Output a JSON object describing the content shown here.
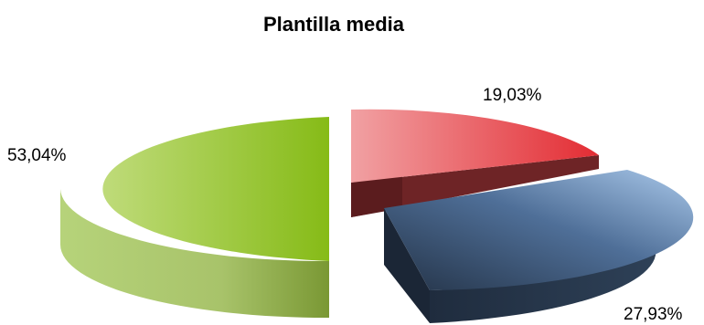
{
  "chart_data": {
    "type": "pie",
    "title": "Plantilla media",
    "slices": [
      {
        "value": 19.03,
        "label": "19,03%",
        "color": "#e8393f"
      },
      {
        "value": 27.93,
        "label": "27,93%",
        "color": "#4a6d96"
      },
      {
        "value": 53.04,
        "label": "53,04%",
        "color": "#9bc53d"
      }
    ],
    "legend": "none",
    "style": "3d-exploded"
  }
}
